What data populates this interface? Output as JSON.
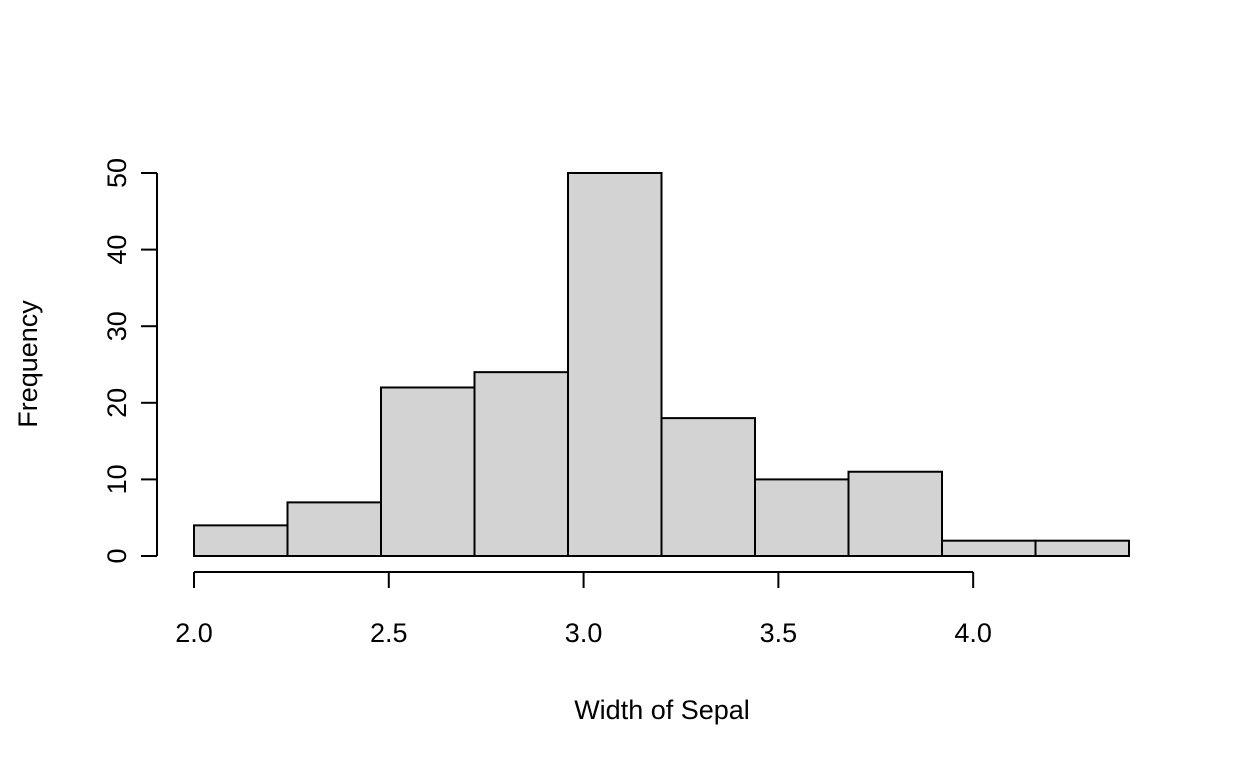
{
  "chart_data": {
    "type": "bar",
    "title": "",
    "xlabel": "Width of Sepal",
    "ylabel": "Frequency",
    "bins": [
      {
        "start": 2.0,
        "end": 2.24,
        "count": 4
      },
      {
        "start": 2.24,
        "end": 2.48,
        "count": 7
      },
      {
        "start": 2.48,
        "end": 2.72,
        "count": 22
      },
      {
        "start": 2.72,
        "end": 2.96,
        "count": 24
      },
      {
        "start": 2.96,
        "end": 3.2,
        "count": 50
      },
      {
        "start": 3.2,
        "end": 3.44,
        "count": 18
      },
      {
        "start": 3.44,
        "end": 3.68,
        "count": 10
      },
      {
        "start": 3.68,
        "end": 3.92,
        "count": 11
      },
      {
        "start": 3.92,
        "end": 4.16,
        "count": 2
      },
      {
        "start": 4.16,
        "end": 4.4,
        "count": 2
      }
    ],
    "xlim": [
      2.0,
      4.4
    ],
    "ylim": [
      0,
      50
    ],
    "x_ticks": [
      "2.0",
      "2.5",
      "3.0",
      "3.5",
      "4.0"
    ],
    "y_ticks": [
      "0",
      "10",
      "20",
      "30",
      "40",
      "50"
    ],
    "bar_fill": "#d3d3d3",
    "bar_stroke": "#000000",
    "grid": false,
    "legend": "none"
  }
}
